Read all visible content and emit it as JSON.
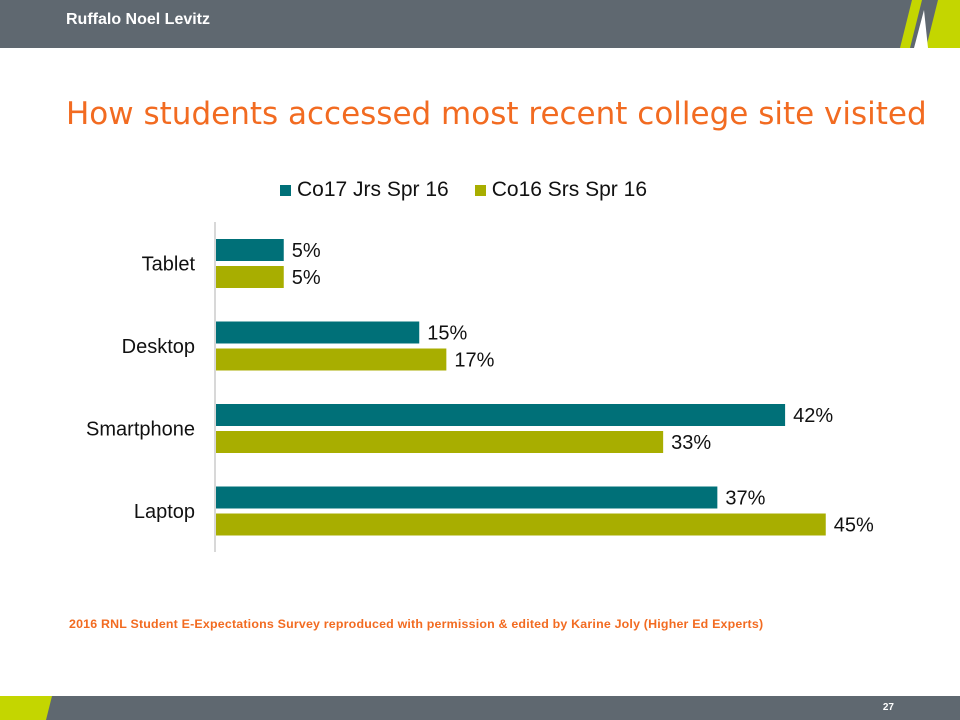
{
  "header": {
    "brand": "Ruffalo Noel Levitz"
  },
  "slide": {
    "title": "How students accessed most recent college site visited",
    "source": "2016 RNL Student E-Expectations Survey reproduced with permission & edited by Karine Joly (Higher Ed Experts)",
    "page_number": "27"
  },
  "colors": {
    "bar": "#5f6870",
    "accent": "#c4d600",
    "title": "#f26b21",
    "series1": "#007078",
    "series2": "#a8ae00"
  },
  "chart_data": {
    "type": "bar",
    "orientation": "horizontal",
    "title": "",
    "categories": [
      "Tablet",
      "Desktop",
      "Smartphone",
      "Laptop"
    ],
    "series": [
      {
        "name": "Co17 Jrs Spr 16",
        "values": [
          5,
          15,
          42,
          37
        ],
        "labels": [
          "5%",
          "15%",
          "42%",
          "37%"
        ],
        "color": "#007078"
      },
      {
        "name": "Co16 Srs Spr 16",
        "values": [
          5,
          17,
          33,
          45
        ],
        "labels": [
          "5%",
          "17%",
          "33%",
          "45%"
        ],
        "color": "#a8ae00"
      }
    ],
    "unit": "%",
    "legend": "top",
    "grid": false
  }
}
